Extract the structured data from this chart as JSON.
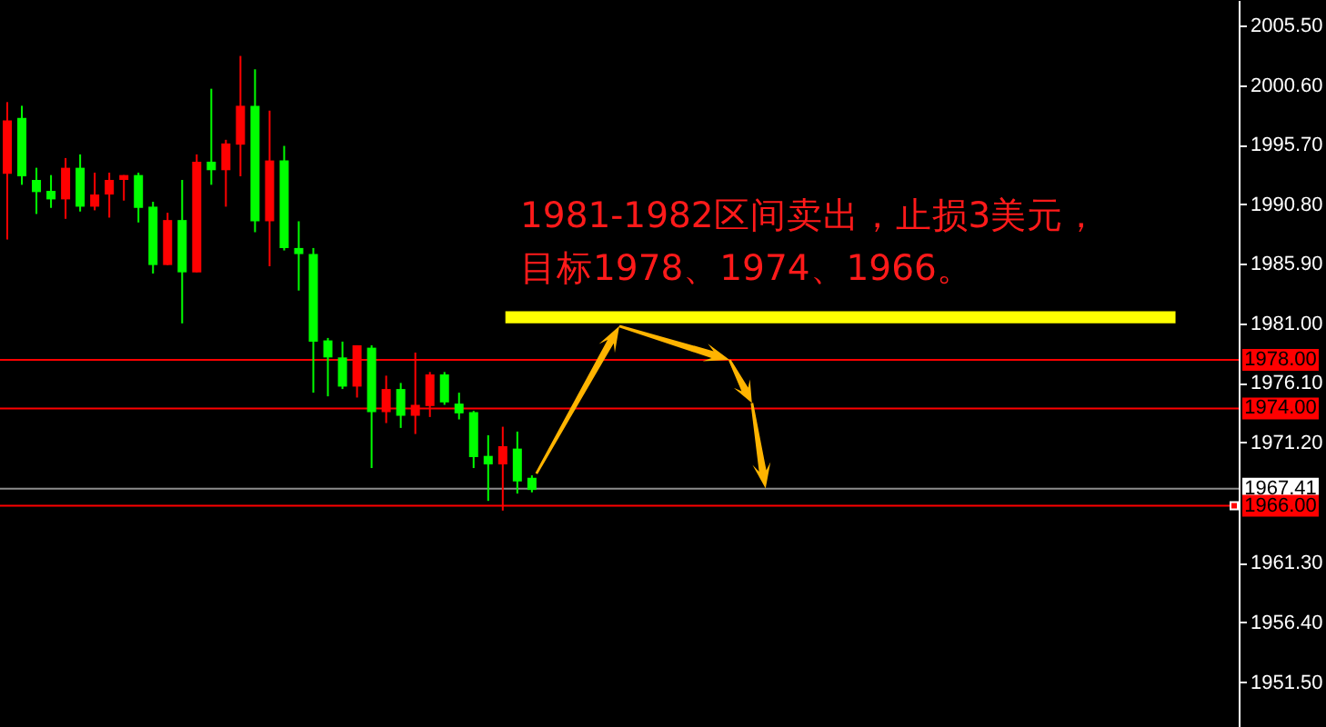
{
  "chart_data": {
    "type": "candlestick",
    "categories": [
      null,
      null,
      null,
      null,
      null,
      null,
      null,
      null,
      null,
      null,
      null,
      null,
      null,
      null,
      null,
      null,
      null,
      null,
      null,
      null,
      null,
      null,
      null,
      null,
      null,
      null,
      null,
      null,
      null,
      null,
      null,
      null,
      null,
      null,
      null,
      null,
      null,
      null,
      null,
      null,
      null,
      null,
      null,
      null,
      null,
      null,
      null,
      null,
      null,
      null,
      null,
      null,
      null,
      null,
      null,
      null,
      null,
      null,
      null,
      null,
      null,
      null,
      null,
      null,
      null,
      null,
      null,
      null,
      null,
      null,
      null,
      null,
      null,
      null,
      null,
      null,
      null,
      null,
      null,
      null,
      null,
      null,
      null,
      null,
      null
    ],
    "ohlc": [
      [
        1997.7,
        1999.2,
        1987.9,
        1993.3
      ],
      [
        1993.1,
        1998.9,
        1992.4,
        1997.9
      ],
      [
        1991.8,
        1993.8,
        1990.0,
        1992.8
      ],
      [
        1991.2,
        1993.2,
        1990.5,
        1991.9
      ],
      [
        1993.8,
        1994.6,
        1989.6,
        1991.2
      ],
      [
        1990.6,
        1994.9,
        1990.2,
        1993.8
      ],
      [
        1991.6,
        1993.4,
        1990.3,
        1990.6
      ],
      [
        1992.8,
        1993.4,
        1989.7,
        1991.6
      ],
      [
        1993.2,
        1993.2,
        1991.1,
        1992.8
      ],
      [
        1990.5,
        1993.4,
        1989.3,
        1993.2
      ],
      [
        1985.8,
        1991.0,
        1985.1,
        1990.6
      ],
      [
        1989.5,
        1990.1,
        1985.8,
        1985.8
      ],
      [
        1985.2,
        1992.8,
        1981.0,
        1989.5
      ],
      [
        1994.3,
        1994.9,
        1985.2,
        1985.2
      ],
      [
        1993.6,
        2000.3,
        1992.4,
        1994.3
      ],
      [
        1995.8,
        1996.1,
        1990.6,
        1993.6
      ],
      [
        1998.9,
        2003.0,
        1993.1,
        1995.7
      ],
      [
        1989.4,
        2001.9,
        1988.5,
        1998.9
      ],
      [
        1994.4,
        1998.5,
        1985.7,
        1989.4
      ],
      [
        1987.2,
        1995.6,
        1987.0,
        1994.4
      ],
      [
        1986.7,
        1989.4,
        1983.7,
        1987.2
      ],
      [
        1979.5,
        1987.2,
        1975.3,
        1986.7
      ],
      [
        1978.2,
        1979.8,
        1975.0,
        1979.6
      ],
      [
        1975.8,
        1979.5,
        1975.6,
        1978.2
      ],
      [
        1979.2,
        1979.2,
        1974.9,
        1975.8
      ],
      [
        1973.7,
        1979.2,
        1969.1,
        1979.0
      ],
      [
        1975.6,
        1976.7,
        1972.8,
        1973.7
      ],
      [
        1973.4,
        1976.1,
        1972.4,
        1975.6
      ],
      [
        1974.3,
        1978.6,
        1971.9,
        1973.4
      ],
      [
        1976.8,
        1977.0,
        1973.3,
        1974.2
      ],
      [
        1974.5,
        1977.0,
        1974.3,
        1976.8
      ],
      [
        1973.6,
        1975.3,
        1973.1,
        1974.4
      ],
      [
        1970.0,
        1973.8,
        1969.1,
        1973.7
      ],
      [
        1969.4,
        1971.8,
        1966.4,
        1970.1
      ],
      [
        1970.9,
        1972.5,
        1965.6,
        1969.4
      ],
      [
        1968.0,
        1972.1,
        1967.0,
        1970.7
      ],
      [
        1967.3,
        1968.5,
        1967.1,
        1968.3
      ],
      null,
      null,
      null,
      null,
      null,
      null,
      null,
      null,
      null,
      null,
      null,
      null,
      null,
      null,
      null,
      null,
      null,
      null,
      null,
      null,
      null,
      null,
      null,
      null,
      null,
      null,
      null,
      null,
      null,
      null,
      null,
      null,
      null,
      null,
      null,
      null,
      null,
      null,
      null,
      null,
      null,
      null,
      null,
      null,
      null,
      null,
      null,
      null
    ],
    "colors": [
      "#ff0000",
      "#00ff00",
      "#00ff00",
      "#00ff00",
      "#ff0000",
      "#00ff00",
      "#ff0000",
      "#ff0000",
      "#ff0000",
      "#00ff00",
      "#00ff00",
      "#ff0000",
      "#00ff00",
      "#ff0000",
      "#00ff00",
      "#ff0000",
      "#ff0000",
      "#00ff00",
      "#ff0000",
      "#00ff00",
      "#00ff00",
      "#00ff00",
      "#00ff00",
      "#00ff00",
      "#ff0000",
      "#00ff00",
      "#ff0000",
      "#00ff00",
      "#ff0000",
      "#ff0000",
      "#00ff00",
      "#00ff00",
      "#00ff00",
      "#00ff00",
      "#ff0000",
      "#00ff00",
      "#00ff00",
      null,
      null,
      null,
      null,
      null,
      null,
      null,
      null,
      null,
      null,
      null,
      null,
      null,
      null,
      null,
      null,
      null,
      null,
      null,
      null,
      null,
      null,
      null,
      null,
      null,
      null,
      null,
      null,
      null,
      null,
      null,
      null,
      null,
      null,
      null,
      null,
      null,
      null,
      null,
      null,
      null,
      null,
      null,
      null,
      null,
      null,
      null,
      null
    ],
    "ylim": [
      1947.8,
      2007.6
    ],
    "yticks": [
      {
        "value": 2005.5,
        "label": "2005.50"
      },
      {
        "value": 2000.6,
        "label": "2000.60"
      },
      {
        "value": 1995.7,
        "label": "1995.70"
      },
      {
        "value": 1990.8,
        "label": "1990.80"
      },
      {
        "value": 1985.9,
        "label": "1985.90"
      },
      {
        "value": 1981.0,
        "label": "1981.00"
      },
      {
        "value": 1976.1,
        "label": "1976.10"
      },
      {
        "value": 1971.2,
        "label": "1971.20"
      },
      {
        "value": 1961.3,
        "label": "1961.30"
      },
      {
        "value": 1956.4,
        "label": "1956.40"
      },
      {
        "value": 1951.5,
        "label": "1951.50"
      }
    ],
    "tick_labels": "y",
    "ref_lines": [
      {
        "axis": "y",
        "value": 1978,
        "label": "1978.00",
        "color": "#ff0000"
      },
      {
        "axis": "y",
        "value": 1974,
        "label": "1974.00",
        "color": "#ff0000"
      },
      {
        "axis": "y",
        "value": 1967.41,
        "label": "1967.41",
        "color": "#8c8c8c"
      },
      {
        "axis": "y",
        "value": 1966,
        "label": "1966.00",
        "color": "#ff0000"
      }
    ],
    "bands": [
      {
        "axis": "y",
        "from": 1981,
        "to": 1982,
        "color": "#ffff00"
      }
    ],
    "annotations": [
      "1981-1982区间卖出，止损3美元，",
      "目标1978、1974、1966。"
    ]
  }
}
